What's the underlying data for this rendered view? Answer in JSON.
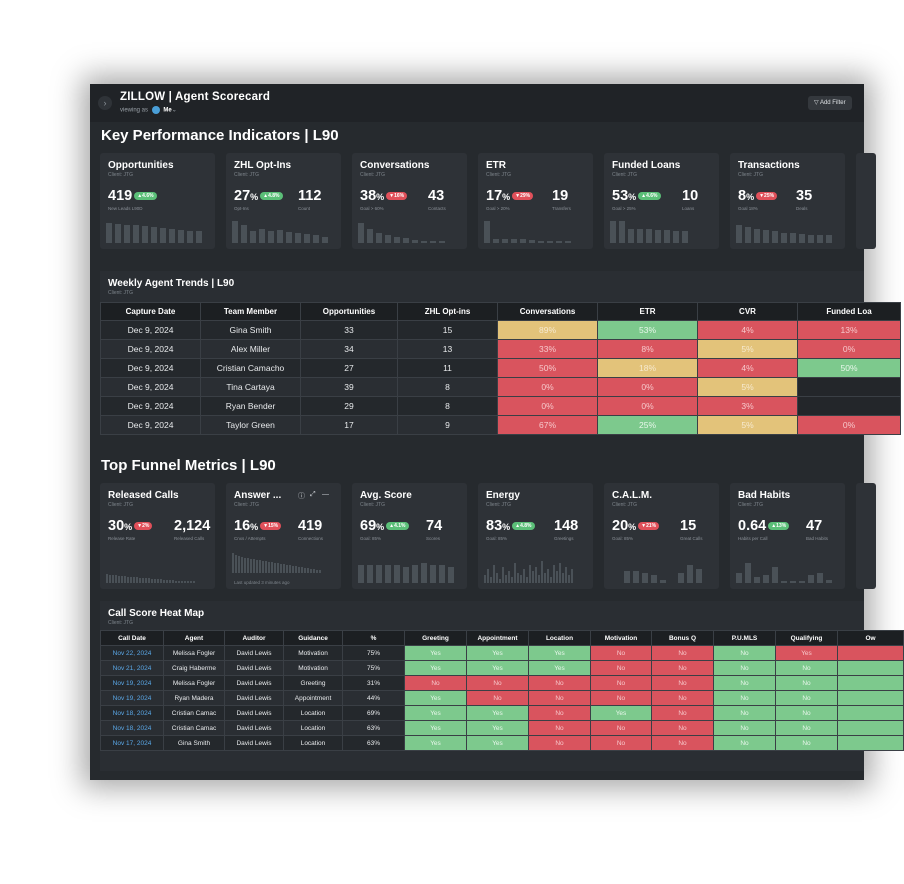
{
  "header": {
    "app_title": "ZILLOW | Agent Scorecard",
    "viewing_prefix": "viewing as",
    "viewing_user": "Me",
    "add_filter": "Add Filter"
  },
  "kpi": {
    "title": "Key Performance Indicators | L90",
    "cards": [
      {
        "title": "Opportunities",
        "client": "Client: JTG",
        "value": "419",
        "pct": "",
        "badge": "4.6%",
        "trend": "up",
        "sub1": "New Leads L90D",
        "value2": "",
        "sub2": ""
      },
      {
        "title": "ZHL Opt-Ins",
        "client": "Client: JTG",
        "value": "27",
        "pct": "%",
        "badge": "4.8%",
        "trend": "up",
        "sub1": "Opt-Ins",
        "value2": "112",
        "sub2": "Count"
      },
      {
        "title": "Conversations",
        "client": "Client: JTG",
        "value": "38",
        "pct": "%",
        "badge": "16%",
        "trend": "down",
        "sub1": "Goal > 60%",
        "value2": "43",
        "sub2": "Contacts"
      },
      {
        "title": "ETR",
        "client": "Client: JTG",
        "value": "17",
        "pct": "%",
        "badge": "29%",
        "trend": "down",
        "sub1": "Goal > 20%",
        "value2": "19",
        "sub2": "Transfers"
      },
      {
        "title": "Funded Loans",
        "client": "Client: JTG",
        "value": "53",
        "pct": "%",
        "badge": "4.6%",
        "trend": "up",
        "sub1": "Goal > 25%",
        "value2": "10",
        "sub2": "Loans"
      },
      {
        "title": "Transactions",
        "client": "Client: JTG",
        "value": "8",
        "pct": "%",
        "badge": "25%",
        "trend": "down",
        "sub1": "Goal 18%",
        "value2": "35",
        "sub2": "Deals"
      }
    ]
  },
  "weekly": {
    "title": "Weekly Agent Trends | L90",
    "client": "Client: JTG",
    "columns": [
      "Capture Date",
      "Team Member",
      "Opportunities",
      "ZHL Opt-ins",
      "Conversations",
      "ETR",
      "CVR",
      "Funded Loa"
    ],
    "rows": [
      {
        "cells": [
          "Dec 9, 2024",
          "Gina Smith",
          "33",
          "15",
          "89%",
          "53%",
          "4%",
          "13%"
        ],
        "colors": [
          "",
          "",
          "",
          "",
          "yellow",
          "green",
          "red",
          "red"
        ]
      },
      {
        "cells": [
          "Dec 9, 2024",
          "Alex Miller",
          "34",
          "13",
          "33%",
          "8%",
          "5%",
          "0%"
        ],
        "colors": [
          "",
          "",
          "",
          "",
          "red",
          "red",
          "yellow",
          "red"
        ]
      },
      {
        "cells": [
          "Dec 9, 2024",
          "Cristian Camacho",
          "27",
          "11",
          "50%",
          "18%",
          "4%",
          "50%"
        ],
        "colors": [
          "",
          "",
          "",
          "",
          "red",
          "yellow",
          "red",
          "green"
        ]
      },
      {
        "cells": [
          "Dec 9, 2024",
          "Tina Cartaya",
          "39",
          "8",
          "0%",
          "0%",
          "5%",
          ""
        ],
        "colors": [
          "",
          "",
          "",
          "",
          "red",
          "red",
          "yellow",
          "dark"
        ]
      },
      {
        "cells": [
          "Dec 9, 2024",
          "Ryan Bender",
          "29",
          "8",
          "0%",
          "0%",
          "3%",
          ""
        ],
        "colors": [
          "",
          "",
          "",
          "",
          "red",
          "red",
          "red",
          "dark"
        ]
      },
      {
        "cells": [
          "Dec 9, 2024",
          "Taylor Green",
          "17",
          "9",
          "67%",
          "25%",
          "5%",
          "0%"
        ],
        "colors": [
          "",
          "",
          "",
          "",
          "red",
          "green",
          "yellow",
          "red"
        ]
      }
    ]
  },
  "funnel": {
    "title": "Top Funnel Metrics | L90",
    "cards": [
      {
        "title": "Released Calls",
        "client": "Client: JTG",
        "value": "30",
        "pct": "%",
        "badge": "2%",
        "trend": "down",
        "sub1": "Release Rate",
        "value2": "2,124",
        "sub2": "Released Calls"
      },
      {
        "title": "Answer ...",
        "client": "Client: JTG",
        "value": "16",
        "pct": "%",
        "badge": "15%",
        "trend": "down",
        "sub1": "Cnxs / Attempts",
        "value2": "419",
        "sub2": "Connections",
        "updated": "Last updated 3 minutes ago"
      },
      {
        "title": "Avg. Score",
        "client": "Client: JTG",
        "value": "69",
        "pct": "%",
        "badge": "4.1%",
        "trend": "up",
        "sub1": "Goal: 85%",
        "value2": "74",
        "sub2": "Scores"
      },
      {
        "title": "Energy",
        "client": "Client: JTG",
        "value": "83",
        "pct": "%",
        "badge": "4.8%",
        "trend": "up",
        "sub1": "Goal: 85%",
        "value2": "148",
        "sub2": "Greetings"
      },
      {
        "title": "C.A.L.M.",
        "client": "Client: JTG",
        "value": "20",
        "pct": "%",
        "badge": "21%",
        "trend": "down",
        "sub1": "Goal: 85%",
        "value2": "15",
        "sub2": "Great Calls"
      },
      {
        "title": "Bad Habits",
        "client": "Client: JTG",
        "value": "0.64",
        "pct": "",
        "badge": "13%",
        "trend": "up",
        "sub1": "Habits per Call",
        "value2": "47",
        "sub2": "Bad Habits"
      }
    ]
  },
  "heatmap": {
    "title": "Call Score Heat Map",
    "client": "Client: JTG",
    "columns": [
      "Call Date",
      "Agent",
      "Auditor",
      "Guidance",
      "%",
      "Greeting",
      "Appointment",
      "Location",
      "Motivation",
      "Bonus Q",
      "P.U.MLS",
      "Qualifying",
      "Ow"
    ],
    "rows": [
      {
        "cells": [
          "Nov 22, 2024",
          "Melissa Fogler",
          "David Lewis",
          "Motivation",
          "75%",
          "Yes",
          "Yes",
          "Yes",
          "No",
          "No",
          "No",
          "Yes",
          ""
        ],
        "colors": [
          "link",
          "",
          "",
          "",
          "",
          "green",
          "green",
          "green",
          "red",
          "red",
          "green",
          "red",
          "red"
        ]
      },
      {
        "cells": [
          "Nov 21, 2024",
          "Craig Haberme",
          "David Lewis",
          "Motivation",
          "75%",
          "Yes",
          "Yes",
          "Yes",
          "No",
          "No",
          "No",
          "No",
          ""
        ],
        "colors": [
          "link",
          "",
          "",
          "",
          "",
          "green",
          "green",
          "green",
          "red",
          "red",
          "green",
          "green",
          "green"
        ]
      },
      {
        "cells": [
          "Nov 19, 2024",
          "Melissa Fogler",
          "David Lewis",
          "Greeting",
          "31%",
          "No",
          "No",
          "No",
          "No",
          "No",
          "No",
          "No",
          ""
        ],
        "colors": [
          "link",
          "",
          "",
          "",
          "",
          "red",
          "red",
          "red",
          "red",
          "red",
          "green",
          "green",
          "green"
        ]
      },
      {
        "cells": [
          "Nov 19, 2024",
          "Ryan Madera",
          "David Lewis",
          "Appointment",
          "44%",
          "Yes",
          "No",
          "No",
          "No",
          "No",
          "No",
          "No",
          ""
        ],
        "colors": [
          "link",
          "",
          "",
          "",
          "",
          "green",
          "red",
          "red",
          "red",
          "red",
          "green",
          "green",
          "green"
        ]
      },
      {
        "cells": [
          "Nov 18, 2024",
          "Cristian Camac",
          "David Lewis",
          "Location",
          "69%",
          "Yes",
          "Yes",
          "No",
          "Yes",
          "No",
          "No",
          "No",
          ""
        ],
        "colors": [
          "link",
          "",
          "",
          "",
          "",
          "green",
          "green",
          "red",
          "green",
          "red",
          "green",
          "green",
          "green"
        ]
      },
      {
        "cells": [
          "Nov 18, 2024",
          "Cristian Camac",
          "David Lewis",
          "Location",
          "63%",
          "Yes",
          "Yes",
          "No",
          "No",
          "No",
          "No",
          "No",
          ""
        ],
        "colors": [
          "link",
          "",
          "",
          "",
          "",
          "green",
          "green",
          "red",
          "red",
          "red",
          "green",
          "green",
          "green"
        ]
      },
      {
        "cells": [
          "Nov 17, 2024",
          "Gina Smith",
          "David Lewis",
          "Location",
          "63%",
          "Yes",
          "Yes",
          "No",
          "No",
          "No",
          "No",
          "No",
          ""
        ],
        "colors": [
          "link",
          "",
          "",
          "",
          "",
          "green",
          "green",
          "red",
          "red",
          "red",
          "green",
          "green",
          "green"
        ]
      }
    ]
  }
}
